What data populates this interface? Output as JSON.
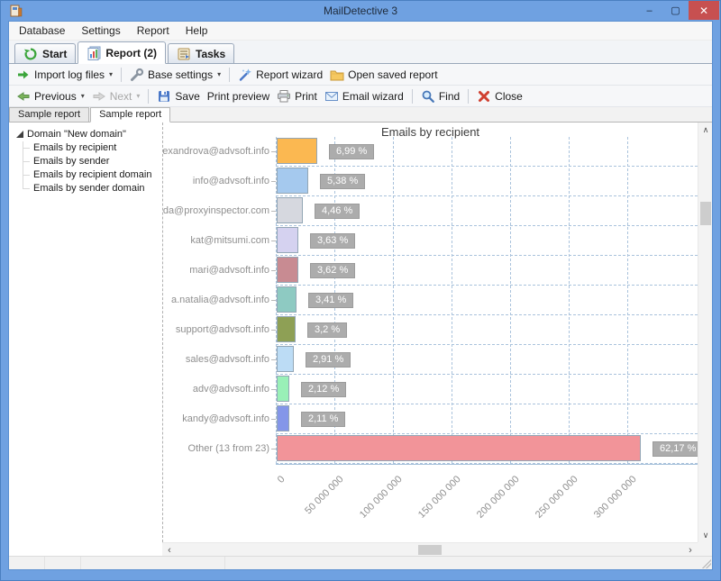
{
  "window": {
    "title": "MailDetective 3",
    "controls": {
      "minimize": "–",
      "maximize": "▢",
      "close": "✕"
    }
  },
  "menu": {
    "items": [
      "Database",
      "Settings",
      "Report",
      "Help"
    ]
  },
  "main_tabs": [
    {
      "label": "Start",
      "active": false
    },
    {
      "label": "Report (2)",
      "active": true
    },
    {
      "label": "Tasks",
      "active": false
    }
  ],
  "toolbar1": {
    "import_log_files": "Import log files",
    "base_settings": "Base settings",
    "report_wizard": "Report wizard",
    "open_saved_report": "Open saved report"
  },
  "toolbar2": {
    "previous": "Previous",
    "next": "Next",
    "save": "Save",
    "print_preview": "Print preview",
    "print": "Print",
    "email_wizard": "Email wizard",
    "find": "Find",
    "close": "Close"
  },
  "report_tabs": [
    {
      "label": "Sample report",
      "active": false
    },
    {
      "label": "Sample report",
      "active": true
    }
  ],
  "tree": {
    "root": "Domain \"New domain\"",
    "items": [
      "Emails by recipient",
      "Emails by sender",
      "Emails by recipient domain",
      "Emails by sender domain"
    ]
  },
  "chart_data": {
    "type": "bar",
    "orientation": "horizontal",
    "title": "Emails by recipient",
    "categories": [
      "alexandrova@advsoft.info",
      "info@advsoft.info",
      "oda@proxyinspector.com",
      "kat@mitsumi.com",
      "mari@advsoft.info",
      "a.natalia@advsoft.info",
      "support@advsoft.info",
      "sales@advsoft.info",
      "adv@advsoft.info",
      "kandy@advsoft.info",
      "Other (13 from 23)"
    ],
    "percent": [
      6.99,
      5.38,
      4.46,
      3.63,
      3.62,
      3.41,
      3.2,
      2.91,
      2.12,
      2.11,
      62.17
    ],
    "percent_labels": [
      "6,99 %",
      "5,38 %",
      "4,46 %",
      "3,63 %",
      "3,62 %",
      "3,41 %",
      "3,2 %",
      "2,91 %",
      "2,12 %",
      "2,11 %",
      "62,17 %"
    ],
    "values": [
      34950000,
      26900000,
      22300000,
      18150000,
      18100000,
      17050000,
      16000000,
      14550000,
      10600000,
      10550000,
      310850000
    ],
    "bar_colors": [
      "#FBB851",
      "#A5C9EE",
      "#D6D8DF",
      "#D5D2F0",
      "#C88B92",
      "#8ECAC2",
      "#8EA055",
      "#BCDCF5",
      "#99F0B7",
      "#8496E9",
      "#F29499"
    ],
    "x_ticks": [
      "0",
      "50 000 000",
      "100 000 000",
      "150 000 000",
      "200 000 000",
      "250 000 000",
      "300 000 000"
    ],
    "x_tick_values": [
      0,
      50000000,
      100000000,
      150000000,
      200000000,
      250000000,
      300000000
    ],
    "xlim": [
      0,
      362000000
    ],
    "xlabel": "",
    "ylabel": "",
    "grid": "dashed",
    "legend": "none"
  },
  "icons": {
    "dropdown": "▾",
    "up": "∧",
    "down": "∨",
    "left": "‹",
    "right": "›"
  },
  "colors": {
    "titlebar": "#6FA1E1",
    "close_button": "#C75050",
    "grid_line": "#A9C2DC",
    "badge_bg": "#ACACAC"
  }
}
